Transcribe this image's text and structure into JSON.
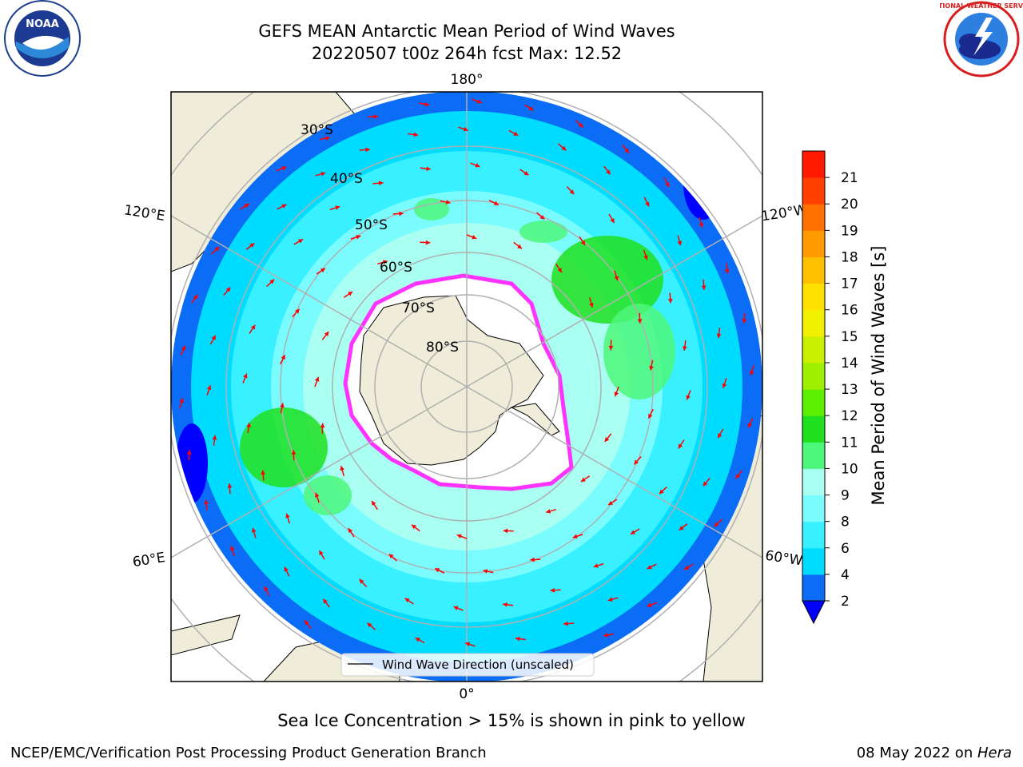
{
  "header": {
    "title_line1": "GEFS MEAN Antarctic Mean Period of Wind Waves",
    "title_line2": "20220507 t00z 264h fcst   Max: 12.52"
  },
  "logos": {
    "left": {
      "name": "NOAA",
      "ring_text": "NATIONAL OCEANIC AND ATMOSPHERIC ADMINISTRATION · U.S. DEPARTMENT OF COMMERCE"
    },
    "right": {
      "name": "NATIONAL WEATHER SERVICE"
    }
  },
  "map": {
    "longitude_labels": {
      "top": "180°",
      "bottom": "0°",
      "upper_left": "120°E",
      "upper_right": "120°W",
      "lower_left": "60°E",
      "lower_right": "60°W"
    },
    "latitude_labels": [
      "30°S",
      "40°S",
      "50°S",
      "60°S",
      "70°S",
      "80°S"
    ],
    "legend": {
      "label": "Wind Wave Direction (unscaled)"
    },
    "arrow_color": "#ff0000",
    "land_color": "#efedd9",
    "ice_edge_colors": [
      "#ff33ff",
      "#ffcc33"
    ]
  },
  "colorbar": {
    "label": "Mean Period of Wind Waves [s]",
    "ticks": [
      "2",
      "4",
      "6",
      "8",
      "9",
      "10",
      "11",
      "12",
      "13",
      "14",
      "15",
      "16",
      "17",
      "18",
      "19",
      "20",
      "21"
    ],
    "colors": [
      "#0b6cf5",
      "#00dcff",
      "#38f0ff",
      "#7afcff",
      "#a8fff2",
      "#4df77a",
      "#20e020",
      "#5cf000",
      "#9ef000",
      "#c8f000",
      "#f0f000",
      "#ffe000",
      "#ffc000",
      "#ff9a00",
      "#ff7000",
      "#ff4000",
      "#ff1a00"
    ],
    "under_color": "#0000ff"
  },
  "footer": {
    "caption": "Sea Ice Concentration > 15% is shown in pink to yellow",
    "left": "NCEP/EMC/Verification Post Processing Product Generation Branch",
    "right_text": "08 May 2022 on ",
    "right_italic": "Hera"
  }
}
